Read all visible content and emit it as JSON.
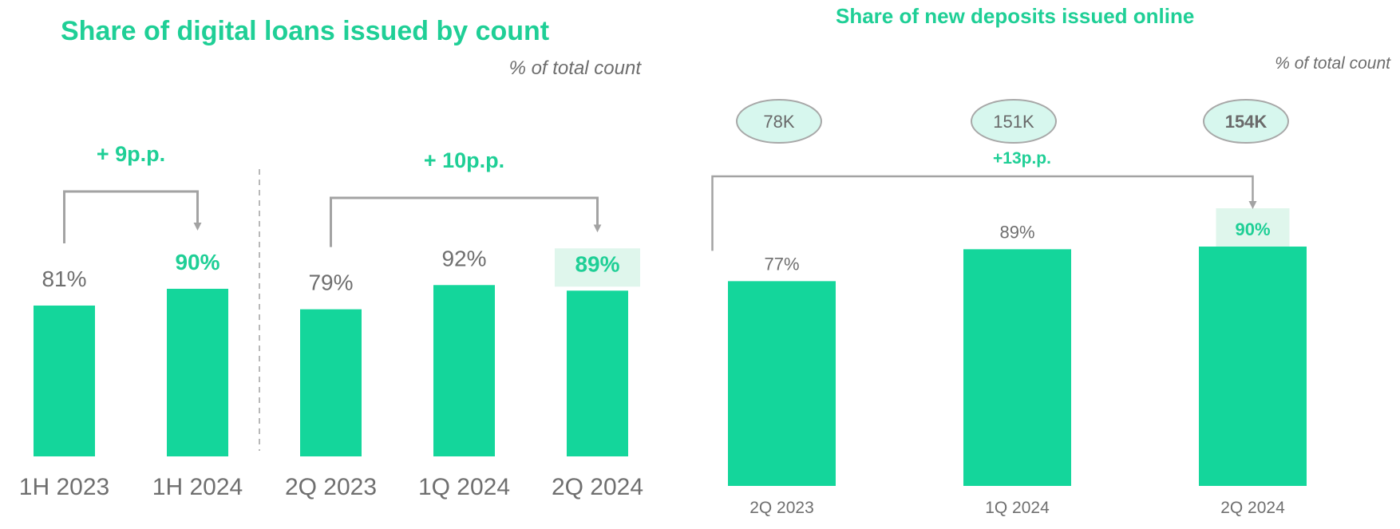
{
  "colors": {
    "accent": "#14d69b",
    "accent_text": "#1fcf96",
    "highlight_box": "#dff6ec",
    "bubble_fill": "#d7f7ee",
    "bubble_stroke": "#a8a8a8",
    "gray_text": "#6f6f6f",
    "arrow": "#a3a3a3"
  },
  "chart_data": [
    {
      "type": "bar",
      "title": "Share of digital loans issued by count",
      "subtitle": "% of total count",
      "panels": [
        {
          "categories": [
            "1H 2023",
            "1H 2024"
          ],
          "values": [
            81,
            90
          ],
          "labels": [
            "81%",
            "90%"
          ],
          "highlight_index": 1,
          "change": "+ 9p.p."
        },
        {
          "categories": [
            "2Q 2023",
            "1Q 2024",
            "2Q 2024"
          ],
          "values": [
            79,
            92,
            89
          ],
          "labels": [
            "79%",
            "92%",
            "89%"
          ],
          "highlight_index": 2,
          "change": "+ 10p.p."
        }
      ]
    },
    {
      "type": "bar",
      "title": "Share of new deposits issued online",
      "subtitle": "% of total count",
      "categories": [
        "2Q 2023",
        "1Q 2024",
        "2Q 2024"
      ],
      "values": [
        77,
        89,
        90
      ],
      "labels": [
        "77%",
        "89%",
        "90%"
      ],
      "bubbles": [
        "78K",
        "151K",
        "154K"
      ],
      "highlight_index": 2,
      "change": "+13p.p."
    }
  ]
}
